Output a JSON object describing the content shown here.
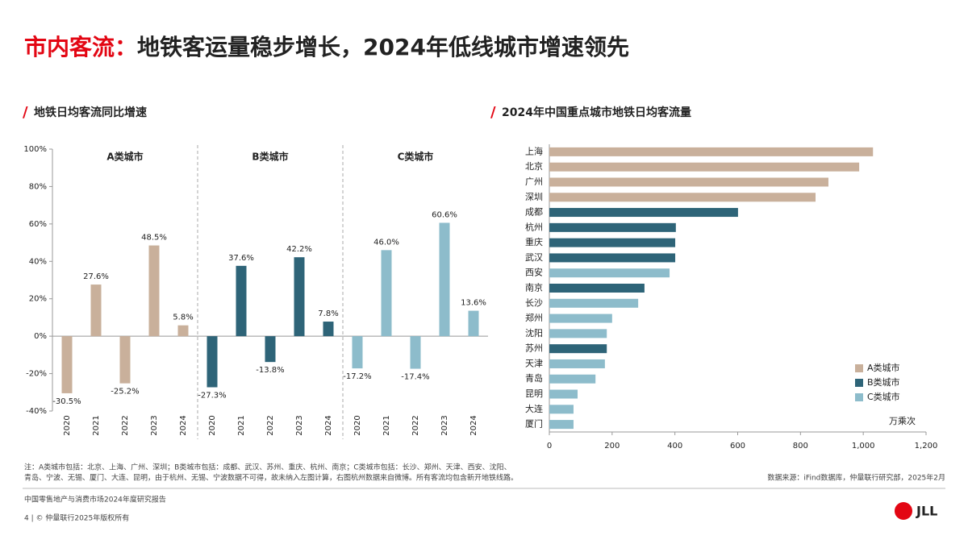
{
  "title": {
    "highlight": "市内客流：",
    "rest": "地铁客运量稳步增长，2024年低线城市增速领先"
  },
  "chart_data": [
    {
      "type": "panel-bar",
      "title": "地铁日均客流同比增速",
      "ylim": [
        -40,
        100
      ],
      "yticks": [
        {
          "value": -40,
          "label": "-40%"
        },
        {
          "value": -20,
          "label": "-20%"
        },
        {
          "value": 0,
          "label": "0%"
        },
        {
          "value": 20,
          "label": "20%"
        },
        {
          "value": 40,
          "label": "40%"
        },
        {
          "value": 60,
          "label": "60%"
        },
        {
          "value": 80,
          "label": "80%"
        },
        {
          "value": 100,
          "label": "100%"
        }
      ],
      "panels": [
        {
          "title": "A类城市",
          "color": "#c9b09b",
          "categories": [
            "2020",
            "2021",
            "2022",
            "2023",
            "2024"
          ],
          "values": [
            -30.5,
            27.6,
            -25.2,
            48.5,
            5.8
          ],
          "value_labels": [
            "-30.5%",
            "27.6%",
            "-25.2%",
            "48.5%",
            "5.8%"
          ]
        },
        {
          "title": "B类城市",
          "color": "#2e6478",
          "categories": [
            "2020",
            "2021",
            "2022",
            "2023",
            "2024"
          ],
          "values": [
            -27.3,
            37.6,
            -13.8,
            42.2,
            7.8
          ],
          "value_labels": [
            "-27.3%",
            "37.6%",
            "-13.8%",
            "42.2%",
            "7.8%"
          ]
        },
        {
          "title": "C类城市",
          "color": "#8dbccb",
          "categories": [
            "2020",
            "2021",
            "2022",
            "2023",
            "2024"
          ],
          "values": [
            -17.2,
            46,
            -17.4,
            60.6,
            13.6
          ],
          "value_labels": [
            "-17.2%",
            "46.0%",
            "-17.4%",
            "60.6%",
            "13.6%"
          ]
        }
      ]
    },
    {
      "type": "hbar",
      "title": "2024年中国重点城市地铁日均客流量",
      "unit": "万乘次",
      "categories": [
        "上海",
        "北京",
        "广州",
        "深圳",
        "成都",
        "杭州",
        "重庆",
        "武汉",
        "西安",
        "南京",
        "长沙",
        "郑州",
        "沈阳",
        "苏州",
        "天津",
        "青岛",
        "昆明",
        "大连",
        "厦门"
      ],
      "series": [
        {
          "name": "A类城市",
          "color": "#c9b09b",
          "values": [
            1031,
            987,
            889,
            848,
            null,
            null,
            null,
            null,
            null,
            null,
            null,
            null,
            null,
            null,
            null,
            null,
            null,
            null,
            null
          ]
        },
        {
          "name": "B类城市",
          "color": "#2e6478",
          "values": [
            null,
            null,
            null,
            null,
            601,
            403,
            401,
            401,
            null,
            303,
            null,
            null,
            null,
            183,
            null,
            null,
            null,
            null,
            null
          ]
        },
        {
          "name": "C类城市",
          "color": "#8dbccb",
          "values": [
            null,
            null,
            null,
            null,
            null,
            null,
            null,
            null,
            383,
            null,
            283,
            200,
            183,
            null,
            177,
            147,
            90,
            77,
            77
          ]
        }
      ],
      "xlim": [
        0,
        1200
      ],
      "xticks": [
        0,
        200,
        400,
        600,
        800,
        {
          "value": 1000,
          "label": "1,000"
        },
        {
          "value": 1200,
          "label": "1,200"
        }
      ]
    }
  ],
  "note": [
    "注：A类城市包括：北京、上海、广州、深圳；B类城市包括：成都、武汉、苏州、重庆、杭州、南京；C类城市包括：长沙、郑州、天津、西安、沈阳、",
    "青岛、宁波、无锡、厦门、大连、昆明，由于杭州、无锡、宁波数据不可得，故未纳入左图计算，右图杭州数据来自微博。所有客流均包含新开地铁线路。"
  ],
  "source": "数据来源：iFind数据库，仲量联行研究部，2025年2月",
  "footer": {
    "report": "中国零售地产与消费市场2024年度研究报告",
    "copyright": "4 | © 仲量联行2025年版权所有",
    "logo": "JLL"
  }
}
